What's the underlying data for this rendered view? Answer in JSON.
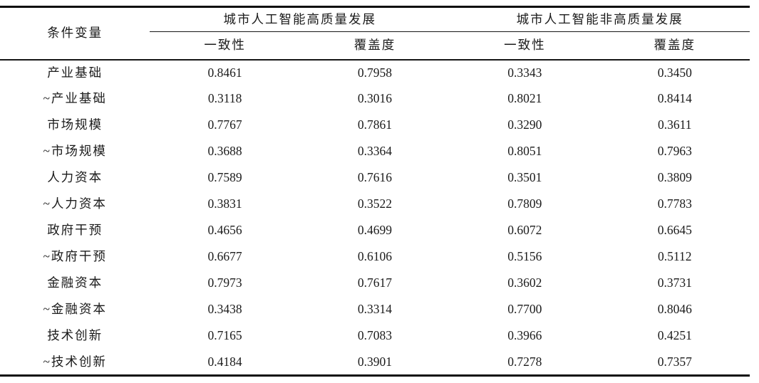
{
  "colors": {
    "background": "#ffffff",
    "text": "#1b1b1b",
    "rule": "#0a0a0a"
  },
  "table": {
    "col1_header": "条件变量",
    "groups": [
      {
        "label": "城市人工智能高质量发展",
        "subcols": [
          "一致性",
          "覆盖度"
        ]
      },
      {
        "label": "城市人工智能非高质量发展",
        "subcols": [
          "一致性",
          "覆盖度"
        ]
      }
    ],
    "rows": [
      {
        "label": "产业基础",
        "values": [
          "0.8461",
          "0.7958",
          "0.3343",
          "0.3450"
        ]
      },
      {
        "label": "~产业基础",
        "values": [
          "0.3118",
          "0.3016",
          "0.8021",
          "0.8414"
        ]
      },
      {
        "label": "市场规模",
        "values": [
          "0.7767",
          "0.7861",
          "0.3290",
          "0.3611"
        ]
      },
      {
        "label": "~市场规模",
        "values": [
          "0.3688",
          "0.3364",
          "0.8051",
          "0.7963"
        ]
      },
      {
        "label": "人力资本",
        "values": [
          "0.7589",
          "0.7616",
          "0.3501",
          "0.3809"
        ]
      },
      {
        "label": "~人力资本",
        "values": [
          "0.3831",
          "0.3522",
          "0.7809",
          "0.7783"
        ]
      },
      {
        "label": "政府干预",
        "values": [
          "0.4656",
          "0.4699",
          "0.6072",
          "0.6645"
        ]
      },
      {
        "label": "~政府干预",
        "values": [
          "0.6677",
          "0.6106",
          "0.5156",
          "0.5112"
        ]
      },
      {
        "label": "金融资本",
        "values": [
          "0.7973",
          "0.7617",
          "0.3602",
          "0.3731"
        ]
      },
      {
        "label": "~金融资本",
        "values": [
          "0.3438",
          "0.3314",
          "0.7700",
          "0.8046"
        ]
      },
      {
        "label": "技术创新",
        "values": [
          "0.7165",
          "0.7083",
          "0.3966",
          "0.4251"
        ]
      },
      {
        "label": "~技术创新",
        "values": [
          "0.4184",
          "0.3901",
          "0.7278",
          "0.7357"
        ]
      }
    ]
  }
}
